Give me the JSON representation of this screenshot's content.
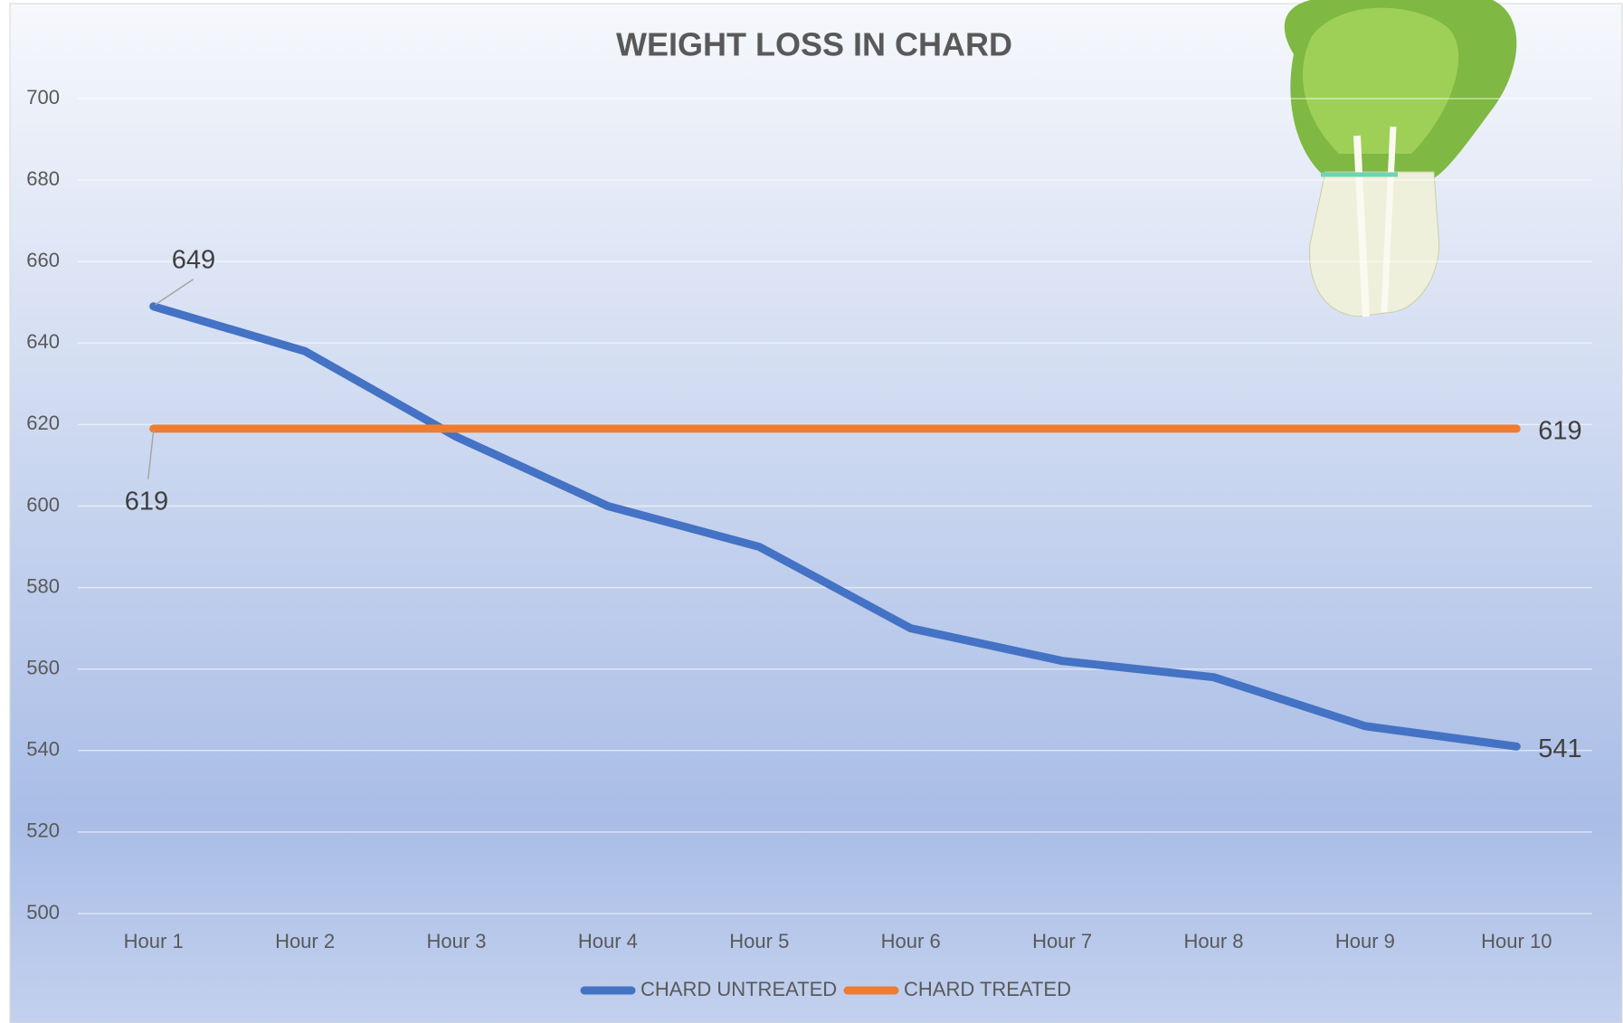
{
  "chart_data": {
    "type": "line",
    "title": "WEIGHT LOSS IN CHARD",
    "categories": [
      "Hour 1",
      "Hour 2",
      "Hour 3",
      "Hour 4",
      "Hour 5",
      "Hour 6",
      "Hour 7",
      "Hour 8",
      "Hour 9",
      "Hour 10"
    ],
    "series": [
      {
        "name": "CHARD UNTREATED",
        "color": "#4472c4",
        "values": [
          649,
          638,
          617,
          600,
          590,
          570,
          562,
          558,
          546,
          541
        ]
      },
      {
        "name": "CHARD TREATED",
        "color": "#ed7d31",
        "values": [
          619,
          619,
          619,
          619,
          619,
          619,
          619,
          619,
          619,
          619
        ]
      }
    ],
    "ylim": [
      500,
      700
    ],
    "yticks": [
      500,
      520,
      540,
      560,
      580,
      600,
      620,
      640,
      660,
      680,
      700
    ],
    "grid": true,
    "legend": "bottom"
  }
}
